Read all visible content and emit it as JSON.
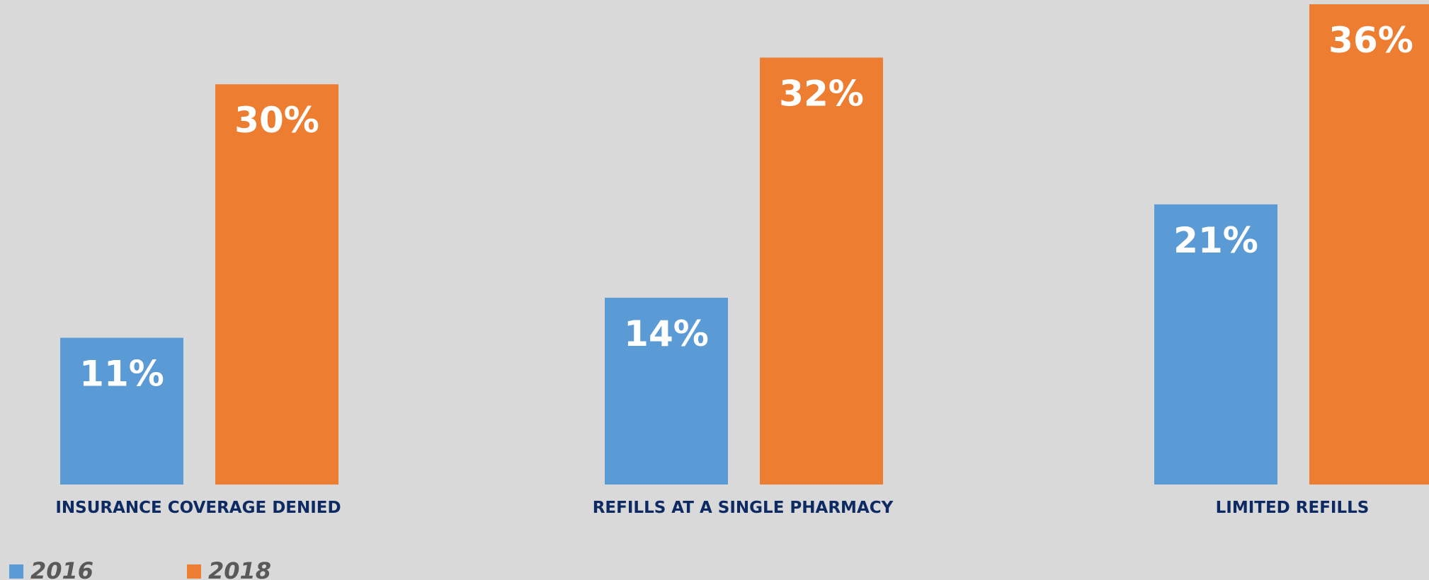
{
  "chart_data": {
    "type": "bar",
    "categories": [
      "INSURANCE COVERAGE DENIED",
      "REFILLS AT A SINGLE PHARMACY",
      "LIMITED REFILLS"
    ],
    "series": [
      {
        "name": "2016",
        "values": [
          11,
          14,
          21
        ],
        "labels": [
          "11%",
          "14%",
          "21%"
        ],
        "color": "#5b9bd5"
      },
      {
        "name": "2018",
        "values": [
          30,
          32,
          36
        ],
        "labels": [
          "30%",
          "32%",
          "36%"
        ],
        "color": "#ed7d31"
      }
    ],
    "ylim": [
      0,
      36
    ],
    "grid": false,
    "legend_position": "bottom-left",
    "background": "#d9d9d9"
  }
}
